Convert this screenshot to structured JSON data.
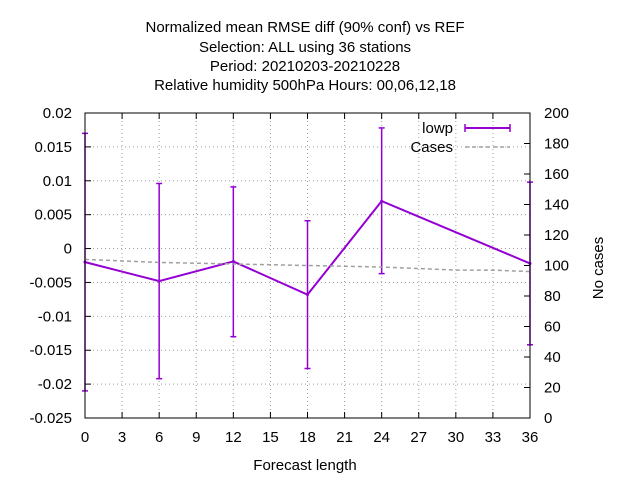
{
  "chart_data": {
    "type": "line",
    "title_lines": [
      "Normalized mean RMSE diff (90% conf) vs REF",
      "Selection: ALL using    36 stations",
      "Period: 20210203-20210228",
      "Relative humidity 500hPa   Hours:  00,06,12,18"
    ],
    "xlabel": "Forecast length",
    "ylabel_right": "No cases",
    "x_ticks": [
      0,
      3,
      6,
      9,
      12,
      15,
      18,
      21,
      24,
      27,
      30,
      33,
      36
    ],
    "xlim": [
      0,
      36
    ],
    "y_left_ticks": [
      "0.02",
      "0.015",
      "0.01",
      "0.005",
      "0",
      "-0.005",
      "-0.01",
      "-0.015",
      "-0.02",
      "-0.025"
    ],
    "ylim_left": [
      -0.025,
      0.02
    ],
    "y_right_ticks": [
      "200",
      "180",
      "160",
      "140",
      "120",
      "100",
      "80",
      "60",
      "40",
      "20",
      "0"
    ],
    "ylim_right": [
      0,
      200
    ],
    "grid": true,
    "legend_position": "top-right",
    "series": [
      {
        "name": "lowp",
        "color": "#9400d3",
        "axis": "left",
        "style": "line-errorbars",
        "points": [
          {
            "x": 0,
            "y": -0.002,
            "low": -0.021,
            "high": 0.017
          },
          {
            "x": 6,
            "y": -0.0048,
            "low": -0.0192,
            "high": 0.0096
          },
          {
            "x": 12,
            "y": -0.0019,
            "low": -0.013,
            "high": 0.0091
          },
          {
            "x": 18,
            "y": -0.0068,
            "low": -0.0177,
            "high": 0.0041
          },
          {
            "x": 24,
            "y": 0.007,
            "low": -0.0037,
            "high": 0.0178
          },
          {
            "x": 36,
            "y": -0.0022,
            "low": -0.0142,
            "high": 0.0098
          }
        ]
      },
      {
        "name": "Cases",
        "color": "#a0a0a0",
        "axis": "right",
        "style": "dashed",
        "points": [
          {
            "x": 0,
            "y": 104
          },
          {
            "x": 6,
            "y": 102
          },
          {
            "x": 12,
            "y": 101
          },
          {
            "x": 18,
            "y": 100
          },
          {
            "x": 24,
            "y": 99
          },
          {
            "x": 27,
            "y": 98
          },
          {
            "x": 30,
            "y": 97
          },
          {
            "x": 33,
            "y": 97
          },
          {
            "x": 36,
            "y": 96
          }
        ]
      }
    ]
  }
}
